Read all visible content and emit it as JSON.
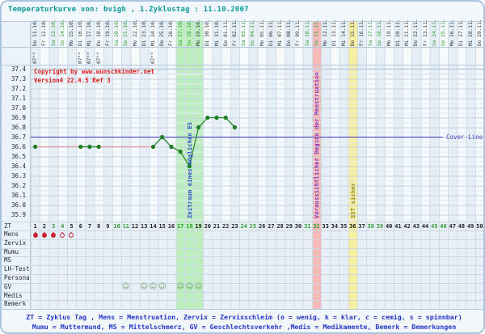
{
  "header": {
    "title": "Temperaturkurve von: bvigh , 1.Zyklustag : 11.10.2007"
  },
  "watermark": {
    "line1": "Copyright by www.wunschkinder.net",
    "line2": "Version4 22.4.5 Ref 3"
  },
  "legend": {
    "line1": "ZT = Zyklus Tag , Mens = Menstruation, Zervix = Zervixschleim (o = wenig, k = klar, c = cemig, s = spinnbar)",
    "line2": "Mumu = Muttermund, MS = Mittelschmerz, GV = Geschlechtsverkehr ,Medis = Medikamente, Bemerk = Bemerkungen"
  },
  "chart_data": {
    "type": "line",
    "title": "Temperaturkurve von: bvigh , 1.Zyklustag : 11.10.2007",
    "x_axis": {
      "unit": "Zyklustag (ZT)",
      "days": 50,
      "date_labels": [
        "Do 11.10.",
        "Fr 12.10.",
        "Sa 13.10.",
        "So 14.10.",
        "Mo 15.10.",
        "Di 16.10.",
        "Mi 17.10.",
        "Do 18.10.",
        "Fr 19.10.",
        "Sa 20.10.",
        "So 21.10.",
        "Mo 22.10.",
        "Di 23.10.",
        "Mi 24.10.",
        "Do 25.10.",
        "Fr 26.10.",
        "Sa 27.10.",
        "So 28.10.",
        "Mo 29.10.",
        "Di 30.10.",
        "Mi 31.10.",
        "Do 01.11.",
        "Fr 02.11.",
        "Sa 03.11.",
        "So 04.11.",
        "Mo 05.11.",
        "Di 06.11.",
        "Mi 07.11.",
        "Do 08.11.",
        "Fr 09.11.",
        "Sa 10.11.",
        "So 11.11.",
        "Mo 12.11.",
        "Di 13.11.",
        "Mi 14.11.",
        "Do 15.11.",
        "Fr 16.11.",
        "Sa 17.11.",
        "So 18.11.",
        "Mo 19.11.",
        "Di 20.11.",
        "Mi 21.11.",
        "Do 22.11.",
        "Fr 23.11.",
        "Sa 24.11.",
        "So 25.11.",
        "Mo 26.11.",
        "Di 27.11.",
        "Mi 28.11.",
        "Do 29.11."
      ],
      "time_labels": {
        "days": [
          1,
          6,
          7,
          8,
          14
        ],
        "text": "07⁰⁰"
      }
    },
    "y_axis": {
      "min": 35.9,
      "max": 37.4,
      "tick_step": 0.1,
      "tick_labels": [
        "37.4",
        "37.3",
        "37.2",
        "37.1",
        "37.0",
        "36.9",
        "36.8",
        "36.7",
        "36.6",
        "36.5",
        "36.4",
        "36.3",
        "36.2",
        "36.1",
        "36.0",
        "35.9"
      ]
    },
    "series": [
      {
        "name": "Basaltemperatur",
        "points": [
          {
            "day": 1,
            "temp": 36.6
          },
          {
            "day": 6,
            "temp": 36.6
          },
          {
            "day": 7,
            "temp": 36.6
          },
          {
            "day": 8,
            "temp": 36.6
          },
          {
            "day": 14,
            "temp": 36.6
          },
          {
            "day": 15,
            "temp": 36.7
          },
          {
            "day": 16,
            "temp": 36.6
          },
          {
            "day": 17,
            "temp": 36.55
          },
          {
            "day": 18,
            "temp": 36.4
          },
          {
            "day": 19,
            "temp": 36.8
          },
          {
            "day": 20,
            "temp": 36.9
          },
          {
            "day": 21,
            "temp": 36.9
          },
          {
            "day": 22,
            "temp": 36.9
          },
          {
            "day": 23,
            "temp": 36.8
          }
        ]
      }
    ],
    "cover_line": {
      "temp": 36.7,
      "label": "Cover-Line",
      "color": "#4a3fbf"
    },
    "line_color": "#2c8c2c",
    "point_color": "#1f7d26",
    "gap_line_color": "#e69c9c",
    "weekend_color": "#2f9e2f",
    "bands": [
      {
        "label": "Zeitraum eines möglichen ES",
        "from_day": 17,
        "to_day": 19,
        "color": "#bdeebd",
        "label_color": "#2947cc"
      },
      {
        "label": "Voraussichtlicher Beginn der Menstruation",
        "from_day": 32,
        "to_day": 32,
        "color": "#f6baba",
        "label_color": "#8a35b0"
      },
      {
        "label": "SST sicher",
        "from_day": 36,
        "to_day": 36,
        "color": "#f6eea0",
        "label_color": "#96851a"
      }
    ],
    "rows": {
      "labels": [
        "ZT",
        "Mens",
        "Zervix",
        "Mumu",
        "MS",
        "LH-Test",
        "Persona",
        "GV",
        "Medis",
        "Bemerk"
      ],
      "mens": {
        "filled_days": [
          1,
          2,
          3
        ],
        "outline_days": [
          4,
          5
        ]
      },
      "gv_days": [
        11,
        13,
        14,
        15,
        17,
        18,
        19
      ]
    }
  }
}
